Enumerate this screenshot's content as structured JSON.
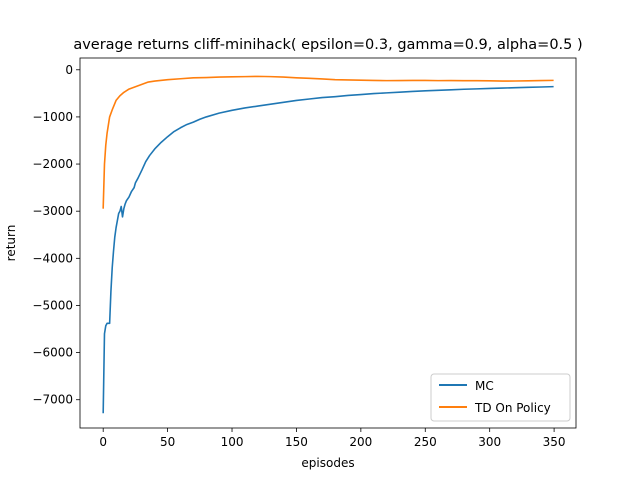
{
  "chart_data": {
    "type": "line",
    "title": "average returns cliff-minihack( epsilon=0.3, gamma=0.9, alpha=0.5 )",
    "xlabel": "episodes",
    "ylabel": "return",
    "xlim": [
      -18,
      367
    ],
    "ylim": [
      -7600,
      250
    ],
    "xticks": [
      0,
      50,
      100,
      150,
      200,
      250,
      300,
      350
    ],
    "yticks": [
      0,
      -1000,
      -2000,
      -3000,
      -4000,
      -5000,
      -6000,
      -7000
    ],
    "ytick_labels": [
      "0",
      "−1000",
      "−2000",
      "−3000",
      "−4000",
      "−5000",
      "−6000",
      "−7000"
    ],
    "legend_position": "lower-right",
    "grid": false,
    "series": [
      {
        "name": "MC",
        "color": "#1f77b4",
        "x": [
          0,
          1,
          2,
          3,
          5,
          6,
          7,
          8,
          9,
          10,
          11,
          12,
          13,
          14,
          15,
          16,
          17,
          18,
          20,
          22,
          24,
          25,
          27,
          30,
          33,
          36,
          40,
          45,
          50,
          55,
          60,
          65,
          70,
          75,
          80,
          90,
          100,
          110,
          120,
          130,
          140,
          150,
          160,
          170,
          180,
          190,
          200,
          210,
          220,
          230,
          240,
          250,
          260,
          270,
          280,
          290,
          300,
          310,
          320,
          330,
          340,
          349
        ],
        "y": [
          -7270,
          -5600,
          -5430,
          -5380,
          -5380,
          -4700,
          -4200,
          -3850,
          -3550,
          -3350,
          -3200,
          -3050,
          -3000,
          -2900,
          -3120,
          -2950,
          -2850,
          -2780,
          -2700,
          -2580,
          -2500,
          -2400,
          -2300,
          -2130,
          -1950,
          -1820,
          -1680,
          -1540,
          -1420,
          -1310,
          -1230,
          -1160,
          -1110,
          -1050,
          -1000,
          -920,
          -860,
          -810,
          -770,
          -730,
          -690,
          -650,
          -620,
          -590,
          -570,
          -545,
          -525,
          -505,
          -490,
          -475,
          -460,
          -447,
          -435,
          -425,
          -413,
          -405,
          -395,
          -388,
          -380,
          -372,
          -365,
          -358
        ]
      },
      {
        "name": "TD On Policy",
        "color": "#ff7f0e",
        "x": [
          0,
          1,
          2,
          3,
          5,
          7,
          10,
          13,
          16,
          20,
          25,
          30,
          35,
          40,
          50,
          60,
          70,
          80,
          90,
          100,
          110,
          120,
          130,
          140,
          150,
          160,
          170,
          180,
          190,
          200,
          210,
          220,
          230,
          240,
          250,
          260,
          270,
          280,
          290,
          300,
          310,
          320,
          330,
          340,
          349
        ],
        "y": [
          -2930,
          -2000,
          -1600,
          -1350,
          -1000,
          -850,
          -650,
          -550,
          -480,
          -410,
          -360,
          -310,
          -260,
          -240,
          -210,
          -190,
          -170,
          -165,
          -155,
          -150,
          -145,
          -140,
          -145,
          -155,
          -170,
          -180,
          -195,
          -210,
          -215,
          -220,
          -225,
          -230,
          -228,
          -225,
          -227,
          -230,
          -228,
          -232,
          -232,
          -235,
          -240,
          -238,
          -235,
          -228,
          -225
        ]
      }
    ]
  }
}
